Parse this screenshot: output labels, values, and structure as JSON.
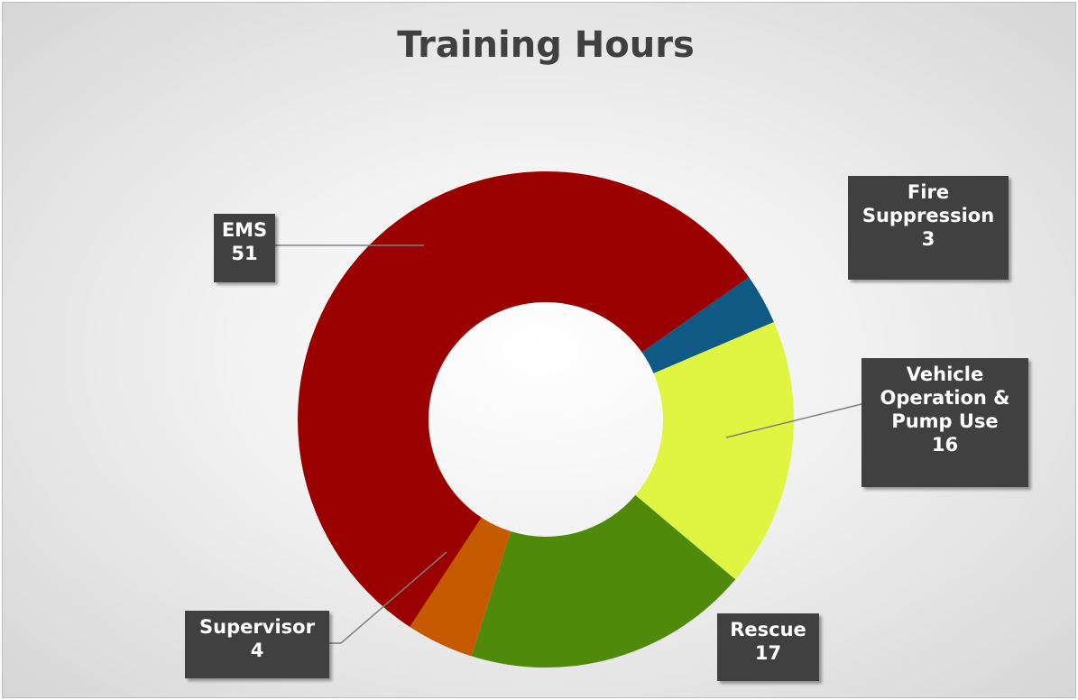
{
  "chart_data": {
    "type": "donut",
    "title": "Training Hours",
    "categories": [
      "Fire Suppression",
      "Vehicle Operation & Pump Use",
      "Rescue",
      "Supervisor",
      "EMS"
    ],
    "values": [
      3,
      16,
      17,
      4,
      51
    ],
    "colors": [
      "#0f5a85",
      "#dff542",
      "#4f8a0a",
      "#c55a00",
      "#9b0000"
    ]
  }
}
